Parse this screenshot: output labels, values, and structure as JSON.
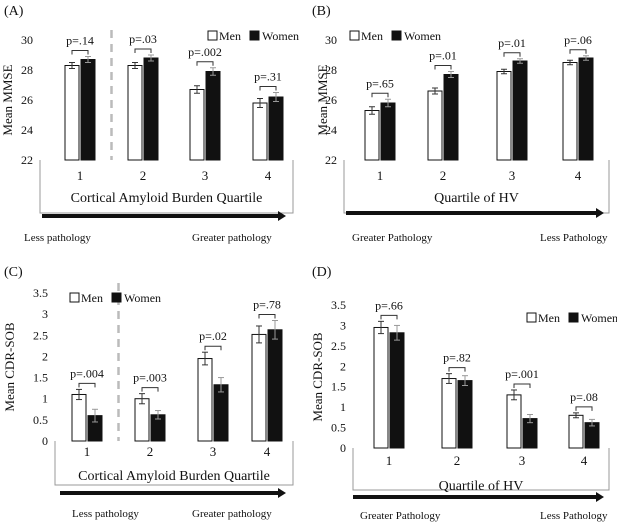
{
  "colors": {
    "men_fill": "#ffffff",
    "women_fill": "#111111",
    "stroke": "#111111",
    "divider": "#bbbbbb"
  },
  "chart_data": [
    {
      "panel": "(A)",
      "type": "bar",
      "ylabel": "Mean MMSE",
      "xlabel": "Cortical Amyloid Burden Quartile",
      "ylim": [
        22,
        30
      ],
      "yticks": [
        "22",
        "24",
        "26",
        "28",
        "30"
      ],
      "categories": [
        "1",
        "2",
        "3",
        "4"
      ],
      "series": [
        {
          "name": "Men",
          "values": [
            28.3,
            28.3,
            26.7,
            25.8
          ],
          "errors": [
            0.2,
            0.2,
            0.25,
            0.3
          ]
        },
        {
          "name": "Women",
          "values": [
            28.7,
            28.8,
            27.9,
            26.2
          ],
          "errors": [
            0.2,
            0.2,
            0.25,
            0.3
          ]
        }
      ],
      "p_values": [
        "p=.14",
        "p=.03",
        "p=.002",
        "p=.31"
      ],
      "legend": [
        "Men",
        "Women"
      ],
      "legend_placement": "top-center",
      "divider_after_category": 1,
      "left_note": "Less pathology",
      "right_note": "Greater pathology"
    },
    {
      "panel": "(B)",
      "type": "bar",
      "ylabel": "Mean MMSE",
      "xlabel": "Quartile of HV",
      "ylim": [
        22,
        30
      ],
      "yticks": [
        "22",
        "24",
        "26",
        "28",
        "30"
      ],
      "categories": [
        "1",
        "2",
        "3",
        "4"
      ],
      "series": [
        {
          "name": "Men",
          "values": [
            25.3,
            26.6,
            27.9,
            28.5
          ],
          "errors": [
            0.25,
            0.2,
            0.15,
            0.15
          ]
        },
        {
          "name": "Women",
          "values": [
            25.8,
            27.7,
            28.6,
            28.8
          ],
          "errors": [
            0.25,
            0.2,
            0.15,
            0.15
          ]
        }
      ],
      "p_values": [
        "p=.65",
        "p=.01",
        "p=.01",
        "p=.06"
      ],
      "legend": [
        "Men",
        "Women"
      ],
      "legend_placement": "top-left",
      "divider_after_category": null,
      "left_note": "Greater Pathology",
      "right_note": "Less Pathology"
    },
    {
      "panel": "(C)",
      "type": "bar",
      "ylabel": "Mean CDR-SOB",
      "xlabel": "Cortical Amyloid Burden Quartile",
      "ylim": [
        0,
        3.5
      ],
      "yticks": [
        "0",
        "0.5",
        "1",
        "1.5",
        "2",
        "2.5",
        "3",
        "3.5"
      ],
      "categories": [
        "1",
        "2",
        "3",
        "4"
      ],
      "series": [
        {
          "name": "Men",
          "values": [
            1.1,
            1.0,
            1.95,
            2.52
          ],
          "errors": [
            0.12,
            0.12,
            0.15,
            0.2
          ]
        },
        {
          "name": "Women",
          "values": [
            0.6,
            0.62,
            1.33,
            2.63
          ],
          "errors": [
            0.15,
            0.1,
            0.17,
            0.22
          ]
        }
      ],
      "p_values": [
        "p=.004",
        "p=.003",
        "p=.02",
        "p=.78"
      ],
      "legend": [
        "Men",
        "Women"
      ],
      "legend_placement": "top-left",
      "divider_after_category": 1,
      "left_note": "Less pathology",
      "right_note": "Greater pathology"
    },
    {
      "panel": "(D)",
      "type": "bar",
      "ylabel": "Mean CDR-SOB",
      "xlabel": "Quartile of HV",
      "ylim": [
        0,
        3.5
      ],
      "yticks": [
        "0",
        "0.5",
        "1",
        "1.5",
        "2",
        "2.5",
        "3",
        "3.5"
      ],
      "categories": [
        "1",
        "2",
        "3",
        "4"
      ],
      "series": [
        {
          "name": "Men",
          "values": [
            2.95,
            1.7,
            1.3,
            0.8
          ],
          "errors": [
            0.15,
            0.12,
            0.12,
            0.06
          ]
        },
        {
          "name": "Women",
          "values": [
            2.82,
            1.65,
            0.72,
            0.62
          ],
          "errors": [
            0.18,
            0.12,
            0.1,
            0.08
          ]
        }
      ],
      "p_values": [
        "p=.66",
        "p=.82",
        "p=.001",
        "p=.08"
      ],
      "legend": [
        "Men",
        "Women"
      ],
      "legend_placement": "top-right",
      "divider_after_category": null,
      "left_note": "Greater Pathology",
      "right_note": "Less Pathology"
    }
  ]
}
